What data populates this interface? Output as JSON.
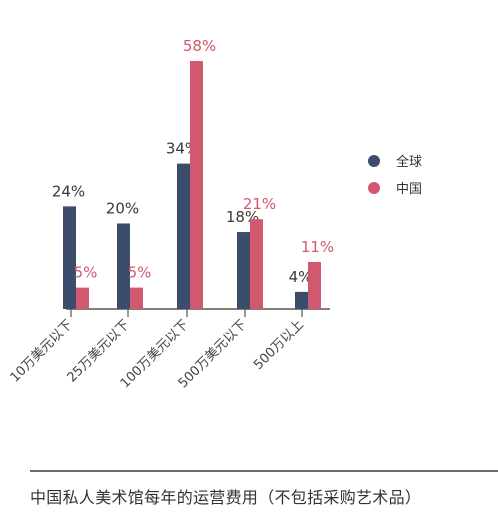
{
  "chart_data": {
    "type": "bar",
    "categories": [
      "10万美元以下",
      "25万美元以下",
      "100万美元以下",
      "500万美元以下",
      "500万以上"
    ],
    "series": [
      {
        "name": "全球",
        "color": "#3c4d6b",
        "values": [
          24,
          20,
          34,
          18,
          4
        ]
      },
      {
        "name": "中国",
        "color": "#d0596f",
        "values": [
          5,
          5,
          58,
          21,
          11
        ]
      }
    ],
    "value_labels": {
      "全球": [
        "24%",
        "20%",
        "34%",
        "18%",
        "4%"
      ],
      "中国": [
        "5%",
        "5%",
        "58%",
        "21%",
        "11%"
      ]
    },
    "ylim": [
      0,
      58
    ],
    "grid": false,
    "legend_position": "right",
    "caption": "中国私人美术馆每年的运营费用（不包括采购艺术品）"
  },
  "colors": {
    "global": "#3c4d6b",
    "china": "#d0596f",
    "global_label": "#3a3a3a",
    "china_label": "#d0596f"
  }
}
